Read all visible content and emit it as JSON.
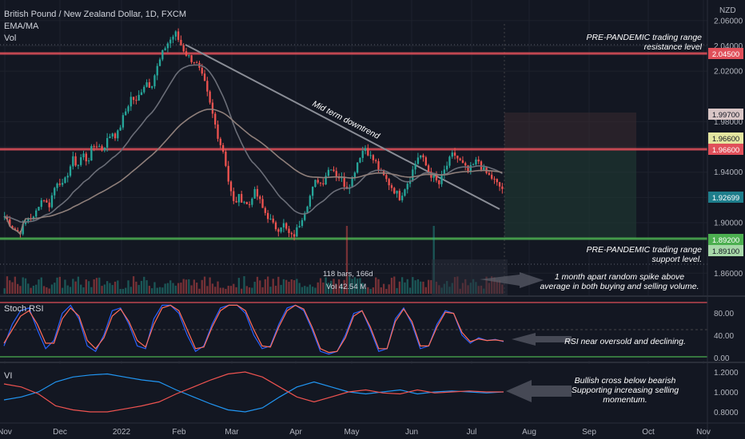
{
  "header": {
    "symbol": "British Pound / New Zealand Dollar, 1D, FXCM",
    "indicator1": "EMA/MA",
    "indicator2": "Vol"
  },
  "currency": "NZD",
  "annotations": {
    "resistance_line1": "PRE-PANDEMIC trading range",
    "resistance_line2": "resistance level",
    "support_line1": "PRE-PANDEMIC trading range",
    "support_line2": "support level.",
    "downtrend": "Mid term downtrend",
    "volume_line1": "1 month apart random spike above",
    "volume_line2": "average in both buying and selling volume.",
    "rsi": "RSI near oversold and declining.",
    "vi_line1": "Bullish cross below bearish",
    "vi_line2": "Supporting increasing selling",
    "vi_line3": "momentum.",
    "bars_label": "118 bars, 166d",
    "vol_label": "Vol 42.54 M"
  },
  "panels": {
    "stoch": "Stoch RSI",
    "vi": "VI"
  },
  "price_ticks": [
    "2.06000",
    "2.04000",
    "2.02000",
    "1.98000",
    "1.96000",
    "1.94000",
    "1.92000",
    "1.90000",
    "1.86000"
  ],
  "price_tags": {
    "r1": "2.04500",
    "t1": "1.99700",
    "t2": "1.96600",
    "r2": "1.96600",
    "last": "1.92699",
    "s1": "1.89200",
    "s2": "1.89100"
  },
  "rsi_ticks": [
    "80.00",
    "40.00",
    "0.00"
  ],
  "vi_ticks": [
    "1.2000",
    "1.0000",
    "0.8000"
  ],
  "time_axis": [
    "Nov",
    "Dec",
    "2022",
    "Feb",
    "Mar",
    "Apr",
    "May",
    "Jun",
    "Jul",
    "Aug",
    "Sep",
    "Oct",
    "Nov"
  ],
  "colors": {
    "bg": "#131722",
    "up": "#26a69a",
    "down": "#ef5350",
    "resistance": "#e0505a",
    "support": "#4caf50",
    "ema": "#7b7b7b",
    "rsi_k": "#2962ff",
    "rsi_d": "#ff6d5a"
  },
  "chart_data": {
    "type": "candlestick",
    "price_range": [
      1.845,
      2.07
    ],
    "levels": {
      "resistance": 2.045,
      "resistance2": 1.966,
      "support": 1.892
    },
    "close_series": [
      1.905,
      1.9,
      1.895,
      1.892,
      1.898,
      1.905,
      1.903,
      1.915,
      1.92,
      1.912,
      1.925,
      1.935,
      1.928,
      1.94,
      1.95,
      1.945,
      1.955,
      1.948,
      1.96,
      1.962,
      1.958,
      1.965,
      1.972,
      1.968,
      1.98,
      1.99,
      2.0,
      1.995,
      2.005,
      2.012,
      2.008,
      2.02,
      2.03,
      2.04,
      2.045,
      2.05,
      2.042,
      2.035,
      2.03,
      2.028,
      2.02,
      2.01,
      1.995,
      1.98,
      1.965,
      1.955,
      1.93,
      1.915,
      1.92,
      1.918,
      1.912,
      1.925,
      1.92,
      1.91,
      1.905,
      1.898,
      1.895,
      1.9,
      1.892,
      1.888,
      1.895,
      1.905,
      1.915,
      1.925,
      1.935,
      1.93,
      1.94,
      1.945,
      1.938,
      1.935,
      1.928,
      1.932,
      1.945,
      1.955,
      1.96,
      1.952,
      1.948,
      1.94,
      1.935,
      1.93,
      1.925,
      1.92,
      1.928,
      1.935,
      1.945,
      1.955,
      1.948,
      1.94,
      1.935,
      1.93,
      1.94,
      1.948,
      1.955,
      1.95,
      1.945,
      1.94,
      1.945,
      1.95,
      1.942,
      1.938,
      1.935,
      1.93,
      1.927
    ],
    "stoch_k": [
      20,
      60,
      85,
      90,
      50,
      15,
      30,
      80,
      95,
      70,
      20,
      10,
      40,
      85,
      90,
      60,
      20,
      15,
      70,
      95,
      95,
      80,
      40,
      10,
      20,
      60,
      90,
      95,
      95,
      80,
      40,
      15,
      20,
      60,
      90,
      95,
      85,
      50,
      10,
      5,
      10,
      40,
      80,
      85,
      50,
      10,
      15,
      70,
      90,
      60,
      15,
      20,
      60,
      85,
      80,
      40,
      25,
      35,
      30,
      32,
      28
    ],
    "stoch_d": [
      25,
      50,
      75,
      85,
      60,
      25,
      25,
      70,
      90,
      75,
      30,
      15,
      35,
      75,
      88,
      65,
      30,
      18,
      60,
      90,
      95,
      85,
      50,
      15,
      18,
      55,
      85,
      95,
      95,
      85,
      50,
      20,
      18,
      55,
      85,
      95,
      88,
      55,
      15,
      8,
      10,
      35,
      75,
      85,
      55,
      15,
      15,
      65,
      88,
      65,
      20,
      20,
      55,
      82,
      80,
      45,
      28,
      33,
      30,
      31,
      29
    ],
    "vi_plus": [
      0.92,
      0.95,
      1.0,
      1.1,
      1.15,
      1.17,
      1.18,
      1.15,
      1.12,
      1.1,
      1.02,
      0.95,
      0.88,
      0.82,
      0.8,
      0.84,
      0.95,
      1.05,
      1.1,
      1.05,
      1.0,
      0.98,
      1.0,
      1.02,
      0.98,
      1.0,
      1.01,
      1.0,
      0.99,
      1.0
    ],
    "vi_minus": [
      1.08,
      1.05,
      0.98,
      0.86,
      0.82,
      0.8,
      0.8,
      0.83,
      0.86,
      0.9,
      0.98,
      1.05,
      1.12,
      1.18,
      1.2,
      1.15,
      1.05,
      0.95,
      0.9,
      0.95,
      1.0,
      1.02,
      0.99,
      0.98,
      1.02,
      0.99,
      1.0,
      1.01,
      1.0,
      1.0
    ]
  }
}
